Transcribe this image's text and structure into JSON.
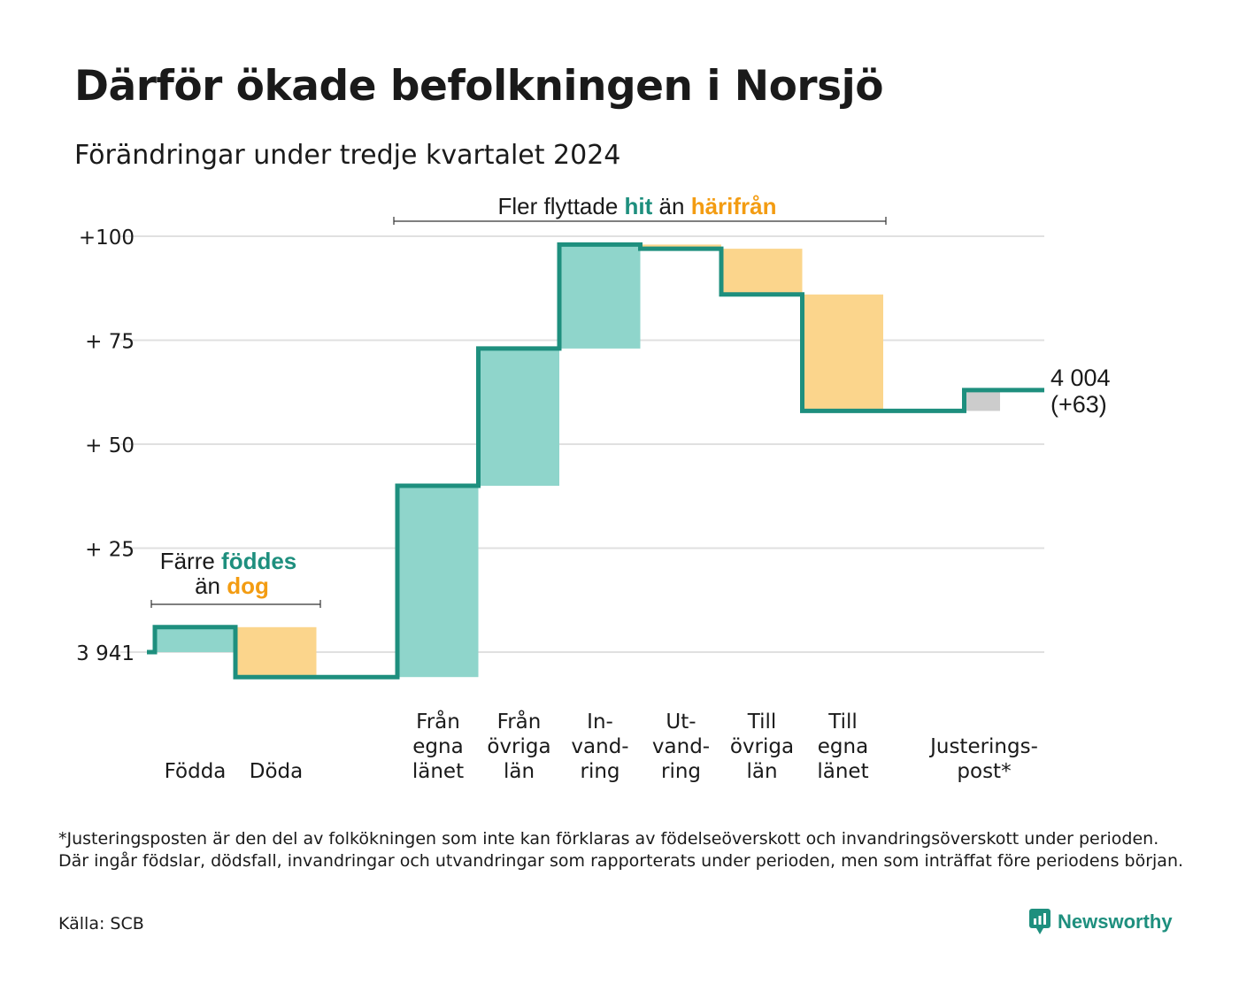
{
  "title": "Därför ökade befolkningen i Norsjö",
  "subtitle": "Förändringar under tredje kvartalet 2024",
  "colors": {
    "step": "#1e8f7e",
    "positive": "#8fd5cb",
    "negative": "#fbd58c",
    "adjustment": "#cccccc",
    "teal_text": "#1e8f7e",
    "orange_text": "#f39c12",
    "grid": "#e0e0e0"
  },
  "annotations": {
    "births": {
      "line1": "Färre ",
      "line1_hl": "föddes",
      "line2": "än ",
      "line2_hl": "dog"
    },
    "migration": {
      "pre": "Fler flyttade ",
      "hl1": "hit",
      "mid": " än ",
      "hl2": "härifrån"
    }
  },
  "end_label": {
    "value": "4 004",
    "change": "(+63)"
  },
  "footnote": "*Justeringsposten är den del av folkökningen som inte kan förklaras av födelseöverskott och invandringsöverskott under perioden. Där ingår födslar, dödsfall, invandringar och utvandringar som rapporterats under perioden, men som inträffat före periodens början.",
  "source": "Källa: SCB",
  "brand": "Newsworthy",
  "chart_data": {
    "type": "waterfall",
    "start_value": 3941,
    "end_value": 4004,
    "total_change": 63,
    "y_ticks": [
      {
        "value": 0,
        "label": "3 941"
      },
      {
        "value": 25,
        "label": "+ 25"
      },
      {
        "value": 50,
        "label": "+ 50"
      },
      {
        "value": 75,
        "label": "+ 75"
      },
      {
        "value": 100,
        "label": "+100"
      }
    ],
    "ylim": [
      -6,
      100
    ],
    "steps": [
      {
        "category": [
          "Födda"
        ],
        "value": 6
      },
      {
        "category": [
          "Döda"
        ],
        "value": -12
      },
      {
        "category": [],
        "value": 0
      },
      {
        "category": [
          "Från",
          "egna",
          "länet"
        ],
        "value": 46
      },
      {
        "category": [
          "Från",
          "övriga",
          "län"
        ],
        "value": 33
      },
      {
        "category": [
          "In-",
          "vand-",
          "ring"
        ],
        "value": 25
      },
      {
        "category": [
          "Ut-",
          "vand-",
          "ring"
        ],
        "value": -1
      },
      {
        "category": [
          "Till",
          "övriga",
          "län"
        ],
        "value": -11
      },
      {
        "category": [
          "Till",
          "egna",
          "länet"
        ],
        "value": -28
      },
      {
        "category": [],
        "value": 0
      },
      {
        "category": [
          "Justerings-",
          "post*"
        ],
        "value": 5
      }
    ]
  }
}
